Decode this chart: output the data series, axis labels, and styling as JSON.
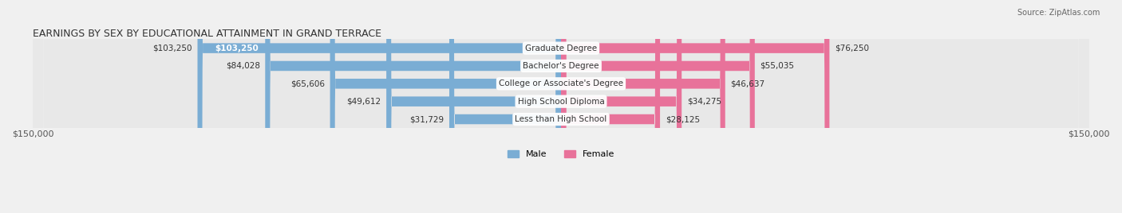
{
  "title": "EARNINGS BY SEX BY EDUCATIONAL ATTAINMENT IN GRAND TERRACE",
  "source": "Source: ZipAtlas.com",
  "categories": [
    "Less than High School",
    "High School Diploma",
    "College or Associate's Degree",
    "Bachelor's Degree",
    "Graduate Degree"
  ],
  "male_values": [
    31729,
    49612,
    65606,
    84028,
    103250
  ],
  "female_values": [
    28125,
    34275,
    46637,
    55035,
    76250
  ],
  "male_color": "#7aadd4",
  "female_color": "#e8729a",
  "male_label": "Male",
  "female_label": "Female",
  "max_value": 150000,
  "background_color": "#f0f0f0",
  "row_bg_color": "#e8e8e8",
  "label_bg_color": "#ffffff",
  "title_fontsize": 10,
  "bar_height": 0.55,
  "xlabel_left": "$150,000",
  "xlabel_right": "$150,000"
}
